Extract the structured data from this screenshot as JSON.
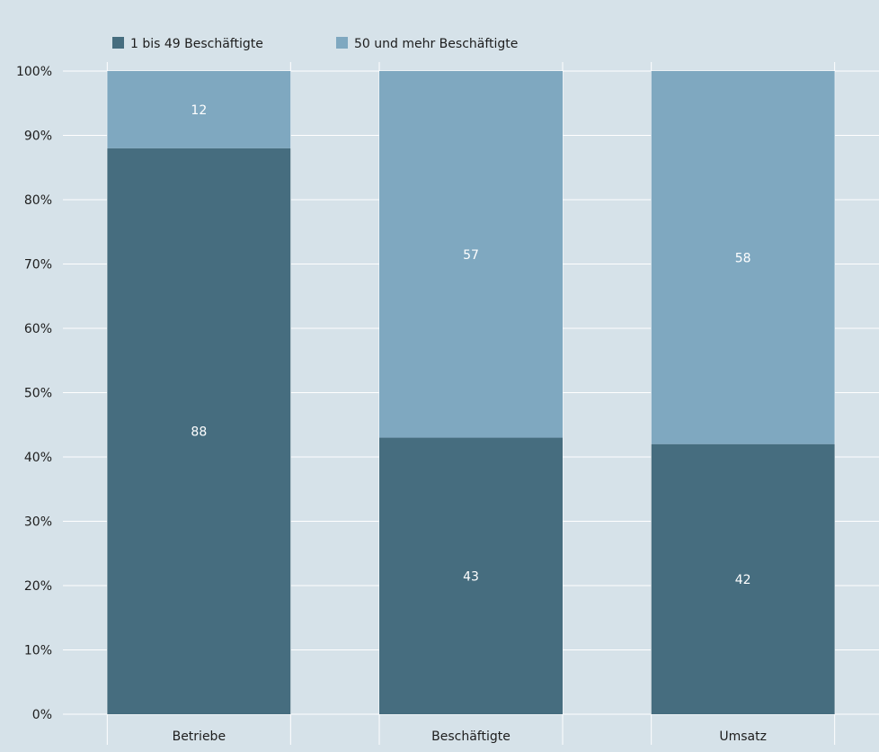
{
  "chart_data": {
    "type": "bar",
    "stacked": true,
    "categories": [
      "Betriebe",
      "Beschäftigte",
      "Umsatz"
    ],
    "series": [
      {
        "name": "1 bis 49 Beschäftigte",
        "values": [
          88,
          43,
          42
        ],
        "color": "#466d7f"
      },
      {
        "name": "50 und mehr Beschäftigte",
        "values": [
          12,
          57,
          58
        ],
        "color": "#7fa8c0"
      }
    ],
    "ylim": [
      0,
      100
    ],
    "yticks": [
      0,
      10,
      20,
      30,
      40,
      50,
      60,
      70,
      80,
      90,
      100
    ],
    "ytick_labels": [
      "0%",
      "10%",
      "20%",
      "30%",
      "40%",
      "50%",
      "60%",
      "70%",
      "80%",
      "90%",
      "100%"
    ],
    "grid": true,
    "legend_position": "top-left",
    "title": "",
    "xlabel": "",
    "ylabel": ""
  },
  "colors": {
    "background": "#d6e2e9",
    "grid": "#ffffff",
    "label_on_bar": "#ffffff"
  }
}
